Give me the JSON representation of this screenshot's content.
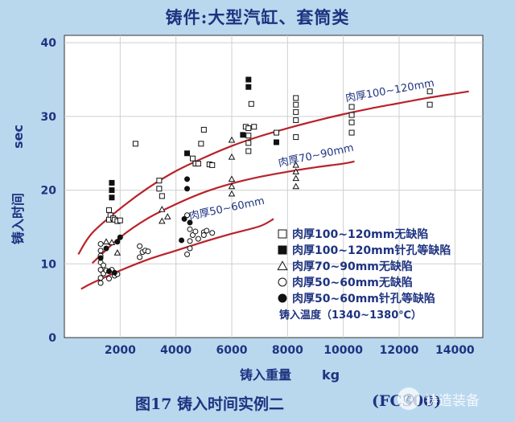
{
  "page": {
    "title": "铸件:大型汽缸、套筒类",
    "figure_caption": "图17 铸入时间实例二",
    "material": "(FC300)",
    "watermark": "铸造装备",
    "watermark_icon": "wechat-icon"
  },
  "colors": {
    "background": "#b9d8ee",
    "plot_bg": "#ffffff",
    "grid": "#cfcfcf",
    "curve": "#b8232a",
    "axis_text": "#1e3380",
    "marker": "#111111"
  },
  "chart_data": {
    "type": "scatter",
    "xlabel": "铸入重量",
    "xlabel_unit": "kg",
    "ylabel": "铸入时间",
    "ylabel_unit": "sec",
    "xlim": [
      0,
      15000
    ],
    "ylim": [
      0,
      41
    ],
    "xticks": [
      "2000",
      "4000",
      "6000",
      "8000",
      "10000",
      "12000",
      "14000"
    ],
    "yticks": [
      "0",
      "10",
      "20",
      "30",
      "40"
    ],
    "grid": true,
    "legend_position": "lower-right",
    "legend_note": "铸入温度（1340~1380℃）",
    "curves": [
      {
        "label": "肉厚100~120mm",
        "points": [
          [
            500,
            11.3
          ],
          [
            1000,
            14.2
          ],
          [
            2000,
            17.5
          ],
          [
            3000,
            20.3
          ],
          [
            4000,
            22.6
          ],
          [
            5000,
            24.4
          ],
          [
            6000,
            26.0
          ],
          [
            7000,
            27.3
          ],
          [
            8000,
            28.4
          ],
          [
            9000,
            29.4
          ],
          [
            10000,
            30.3
          ],
          [
            11000,
            31.1
          ],
          [
            12000,
            31.8
          ],
          [
            13000,
            32.5
          ],
          [
            14000,
            33.1
          ],
          [
            14500,
            33.4
          ]
        ]
      },
      {
        "label": "肉厚70~90mm",
        "points": [
          [
            1000,
            10.1
          ],
          [
            2000,
            13.6
          ],
          [
            3000,
            16.2
          ],
          [
            4000,
            18.1
          ],
          [
            5000,
            19.7
          ],
          [
            6000,
            20.9
          ],
          [
            7000,
            21.8
          ],
          [
            8000,
            22.5
          ],
          [
            9000,
            23.1
          ],
          [
            10000,
            23.6
          ],
          [
            10400,
            23.9
          ]
        ]
      },
      {
        "label": "肉厚50~60mm",
        "points": [
          [
            600,
            6.6
          ],
          [
            1000,
            7.4
          ],
          [
            2000,
            9.1
          ],
          [
            3000,
            10.6
          ],
          [
            4000,
            11.8
          ],
          [
            5000,
            13.0
          ],
          [
            6000,
            14.1
          ],
          [
            7000,
            15.1
          ],
          [
            7500,
            16.1
          ]
        ]
      }
    ],
    "series": [
      {
        "name": "肉厚100~120mm无缺陷",
        "marker": "square-open",
        "points": [
          [
            1600,
            17.3
          ],
          [
            1650,
            16.6
          ],
          [
            1600,
            16.0
          ],
          [
            1750,
            16.2
          ],
          [
            1800,
            16.0
          ],
          [
            1900,
            15.8
          ],
          [
            2000,
            15.9
          ],
          [
            2550,
            26.3
          ],
          [
            3400,
            21.3
          ],
          [
            3400,
            20.2
          ],
          [
            3500,
            19.2
          ],
          [
            4600,
            24.3
          ],
          [
            4700,
            23.6
          ],
          [
            4800,
            23.6
          ],
          [
            4900,
            26.3
          ],
          [
            5000,
            28.2
          ],
          [
            5200,
            23.5
          ],
          [
            5300,
            23.4
          ],
          [
            6500,
            28.6
          ],
          [
            6600,
            28.4
          ],
          [
            6600,
            27.4
          ],
          [
            6600,
            26.4
          ],
          [
            6600,
            25.3
          ],
          [
            6700,
            31.7
          ],
          [
            6800,
            28.6
          ],
          [
            7600,
            27.8
          ],
          [
            8300,
            32.5
          ],
          [
            8300,
            31.6
          ],
          [
            8300,
            30.6
          ],
          [
            8300,
            29.5
          ],
          [
            8300,
            27.2
          ],
          [
            10300,
            31.3
          ],
          [
            10300,
            30.2
          ],
          [
            10300,
            29.2
          ],
          [
            10300,
            27.8
          ],
          [
            13100,
            33.4
          ],
          [
            13100,
            31.6
          ]
        ]
      },
      {
        "name": "肉厚100~120mm针孔等缺陷",
        "marker": "square-filled",
        "points": [
          [
            1700,
            21.0
          ],
          [
            1700,
            20.0
          ],
          [
            1700,
            19.0
          ],
          [
            4400,
            25.0
          ],
          [
            6600,
            35.0
          ],
          [
            6600,
            34.0
          ],
          [
            6400,
            27.5
          ],
          [
            7600,
            26.5
          ]
        ]
      },
      {
        "name": "肉厚70~90mm无缺陷",
        "marker": "triangle-open",
        "points": [
          [
            1500,
            13.0
          ],
          [
            1700,
            12.9
          ],
          [
            1900,
            11.5
          ],
          [
            3500,
            17.4
          ],
          [
            3700,
            16.4
          ],
          [
            3500,
            15.8
          ],
          [
            6000,
            26.8
          ],
          [
            6000,
            24.5
          ],
          [
            6000,
            21.5
          ],
          [
            6000,
            20.5
          ],
          [
            6000,
            19.5
          ],
          [
            8300,
            23.4
          ],
          [
            8300,
            22.5
          ],
          [
            8300,
            21.6
          ],
          [
            8300,
            20.5
          ]
        ]
      },
      {
        "name": "肉厚50~60mm无缺陷",
        "marker": "circle-open",
        "points": [
          [
            1300,
            12.7
          ],
          [
            1300,
            11.8
          ],
          [
            1300,
            11.1
          ],
          [
            1300,
            10.2
          ],
          [
            1400,
            9.8
          ],
          [
            1300,
            9.2
          ],
          [
            1400,
            8.7
          ],
          [
            1300,
            8.1
          ],
          [
            1300,
            7.4
          ],
          [
            1500,
            9.1
          ],
          [
            1600,
            8.0
          ],
          [
            1700,
            9.2
          ],
          [
            1800,
            8.4
          ],
          [
            1900,
            8.6
          ],
          [
            2700,
            12.4
          ],
          [
            2800,
            11.6
          ],
          [
            2900,
            11.8
          ],
          [
            3000,
            11.7
          ],
          [
            2700,
            10.9
          ],
          [
            4400,
            16.6
          ],
          [
            4500,
            14.7
          ],
          [
            4600,
            13.9
          ],
          [
            4500,
            13.1
          ],
          [
            4500,
            12.1
          ],
          [
            4400,
            11.3
          ],
          [
            4700,
            14.4
          ],
          [
            4800,
            13.4
          ],
          [
            5000,
            14.3
          ],
          [
            5000,
            13.9
          ],
          [
            5100,
            14.5
          ],
          [
            5300,
            14.2
          ]
        ]
      },
      {
        "name": "肉厚50~60mm针孔等缺陷",
        "marker": "circle-filled",
        "points": [
          [
            1300,
            10.8
          ],
          [
            1500,
            12.1
          ],
          [
            1600,
            9.0
          ],
          [
            1800,
            8.8
          ],
          [
            1900,
            13.0
          ],
          [
            2000,
            13.6
          ],
          [
            4400,
            21.5
          ],
          [
            4400,
            20.2
          ],
          [
            4300,
            16.1
          ],
          [
            4200,
            13.2
          ],
          [
            4500,
            15.6
          ]
        ]
      }
    ]
  }
}
